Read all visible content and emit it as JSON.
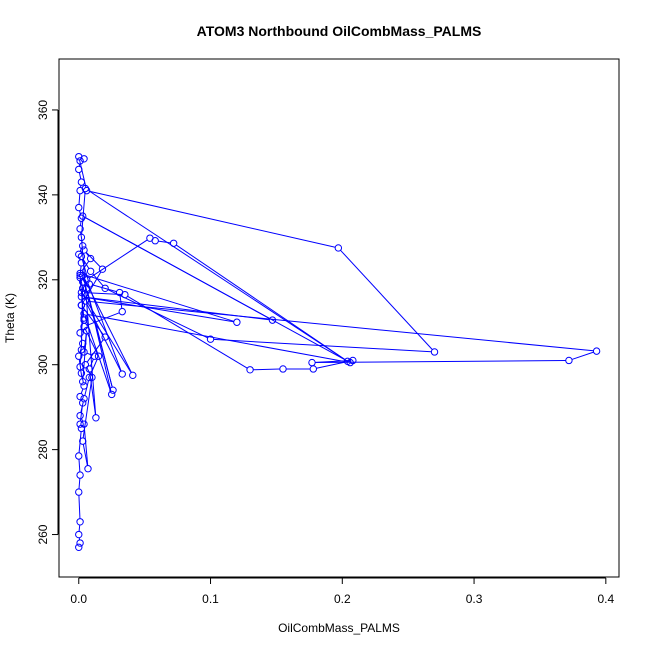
{
  "chart_data": {
    "type": "scatter",
    "title": "ATOM3 Northbound OilCombMass_PALMS",
    "xlabel": "OilCombMass_PALMS",
    "ylabel": "Theta (K)",
    "xlim": [
      -0.015,
      0.41
    ],
    "ylim": [
      250,
      372
    ],
    "x_ticks": [
      0,
      0.1,
      0.2,
      0.3,
      0.4
    ],
    "x_tick_labels": [
      "0.0",
      "0.1",
      "0.2",
      "0.3",
      "0.4"
    ],
    "y_ticks": [
      260,
      280,
      300,
      320,
      340,
      360
    ],
    "y_tick_labels": [
      "260",
      "280",
      "300",
      "320",
      "340",
      "360"
    ],
    "grid": false,
    "legend": "none",
    "series": [
      {
        "color": "#0000ff",
        "marker": "open-circle",
        "lines": true,
        "points": [
          [
            0.0,
            257.0
          ],
          [
            0.001,
            258.0
          ],
          [
            0.0,
            260.0
          ],
          [
            0.001,
            263.0
          ],
          [
            0.0,
            270.0
          ],
          [
            0.001,
            274.0
          ],
          [
            0.0,
            278.5
          ],
          [
            0.002,
            285.0
          ],
          [
            0.001,
            286.0
          ],
          [
            0.003,
            291.0
          ],
          [
            0.001,
            292.5
          ],
          [
            0.004,
            295.0
          ],
          [
            0.002,
            298.0
          ],
          [
            0.0,
            302.0
          ],
          [
            0.003,
            305.0
          ],
          [
            0.001,
            307.5
          ],
          [
            0.004,
            311.0
          ],
          [
            0.002,
            314.0
          ],
          [
            0.003,
            318.0
          ],
          [
            0.001,
            321.0
          ],
          [
            0.002,
            324.0
          ],
          [
            0.0,
            326.0
          ],
          [
            0.003,
            328.0
          ],
          [
            0.001,
            332.0
          ],
          [
            0.002,
            334.5
          ],
          [
            0.0,
            337.0
          ],
          [
            0.001,
            341.0
          ],
          [
            0.002,
            343.0
          ],
          [
            0.0,
            346.0
          ],
          [
            0.001,
            348.0
          ],
          [
            0.004,
            348.5
          ],
          [
            0.0,
            349.0
          ],
          [
            0.006,
            341.0
          ],
          [
            0.197,
            327.5
          ],
          [
            0.27,
            303.0
          ],
          [
            0.1,
            306.0
          ],
          [
            0.02,
            318.0
          ],
          [
            0.009,
            322.0
          ],
          [
            0.002,
            325.5
          ],
          [
            0.008,
            319.0
          ],
          [
            0.031,
            317.0
          ],
          [
            0.033,
            312.5
          ],
          [
            0.004,
            309.0
          ],
          [
            0.015,
            302.0
          ],
          [
            0.008,
            297.0
          ],
          [
            0.004,
            292.0
          ],
          [
            0.001,
            288.0
          ],
          [
            0.004,
            286.0
          ],
          [
            0.007,
            275.5
          ],
          [
            0.003,
            282.0
          ],
          [
            0.01,
            297.0
          ],
          [
            0.005,
            300.0
          ],
          [
            0.02,
            306.5
          ],
          [
            0.002,
            314.0
          ],
          [
            0.018,
            322.5
          ],
          [
            0.004,
            327.0
          ],
          [
            0.009,
            325.0
          ],
          [
            0.001,
            321.5
          ],
          [
            0.12,
            310.0
          ],
          [
            0.002,
            316.0
          ],
          [
            0.147,
            310.5
          ],
          [
            0.003,
            335.0
          ],
          [
            0.206,
            300.5
          ],
          [
            0.004,
            312.0
          ],
          [
            0.025,
            293.0
          ],
          [
            0.006,
            318.0
          ],
          [
            0.026,
            294.0
          ],
          [
            0.003,
            321.0
          ],
          [
            0.041,
            297.5
          ],
          [
            0.002,
            317.0
          ],
          [
            0.035,
            316.5
          ],
          [
            0.13,
            298.8
          ],
          [
            0.155,
            299.0
          ],
          [
            0.178,
            299.0
          ],
          [
            0.208,
            301.0
          ],
          [
            0.177,
            300.5
          ],
          [
            0.372,
            301.0
          ],
          [
            0.393,
            303.2
          ],
          [
            0.005,
            315.0
          ],
          [
            0.033,
            297.8
          ],
          [
            0.006,
            320.0
          ],
          [
            0.054,
            329.8
          ],
          [
            0.058,
            329.2
          ],
          [
            0.072,
            328.6
          ],
          [
            0.204,
            300.8
          ],
          [
            0.005,
            341.5
          ],
          [
            0.002,
            330.0
          ],
          [
            0.013,
            287.5
          ],
          [
            0.008,
            299.0
          ],
          [
            0.012,
            302.0
          ],
          [
            0.004,
            303.0
          ],
          [
            0.006,
            308.0
          ],
          [
            0.003,
            296.0
          ],
          [
            0.001,
            299.5
          ],
          [
            0.002,
            303.5
          ],
          [
            0.003,
            319.5
          ],
          [
            0.001,
            320.5
          ],
          [
            0.004,
            310.5
          ]
        ]
      }
    ]
  }
}
